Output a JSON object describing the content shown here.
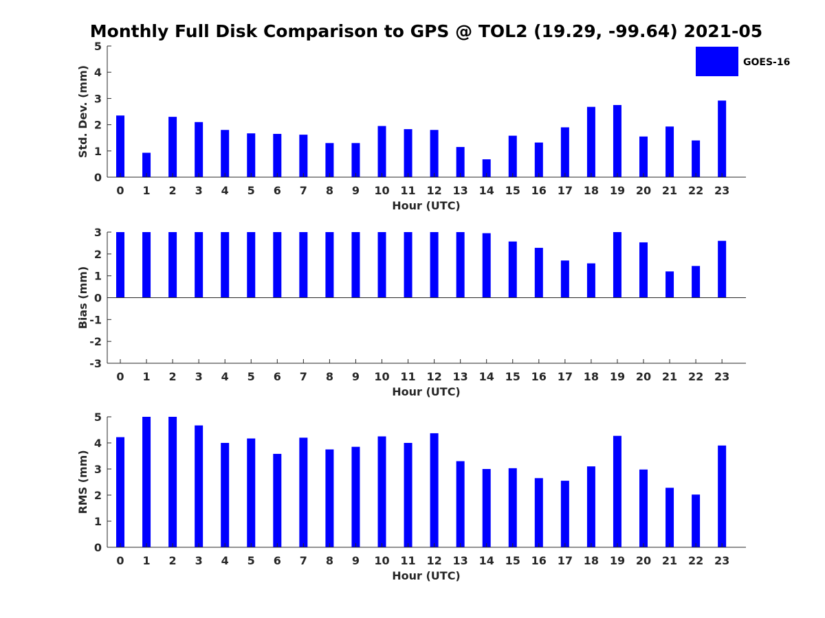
{
  "figure": {
    "title": "Monthly Full Disk Comparison to GPS @ TOL2 (19.29, -99.64) 2021-05"
  },
  "legend": {
    "label": "GOES-16",
    "color": "#0000ff"
  },
  "chart_data": [
    {
      "type": "bar",
      "id": "std",
      "ylabel": "Std. Dev. (mm)",
      "xlabel": "Hour (UTC)",
      "ylim": [
        0,
        5
      ],
      "yticks": [
        0,
        1,
        2,
        3,
        4,
        5
      ],
      "categories": [
        "0",
        "1",
        "2",
        "3",
        "4",
        "5",
        "6",
        "7",
        "8",
        "9",
        "10",
        "11",
        "12",
        "13",
        "14",
        "15",
        "16",
        "17",
        "18",
        "19",
        "20",
        "21",
        "22",
        "23"
      ],
      "series": [
        {
          "name": "GOES-16",
          "values": [
            2.35,
            0.93,
            2.3,
            2.1,
            1.8,
            1.67,
            1.65,
            1.62,
            1.3,
            1.3,
            1.95,
            1.83,
            1.8,
            1.15,
            0.68,
            1.58,
            1.32,
            1.9,
            2.68,
            2.75,
            1.55,
            1.93,
            1.4,
            2.92
          ]
        }
      ]
    },
    {
      "type": "bar",
      "id": "bias",
      "ylabel": "Bias (mm)",
      "xlabel": "Hour (UTC)",
      "ylim": [
        -3,
        3
      ],
      "yticks": [
        -3,
        -2,
        -1,
        0,
        1,
        2,
        3
      ],
      "categories": [
        "0",
        "1",
        "2",
        "3",
        "4",
        "5",
        "6",
        "7",
        "8",
        "9",
        "10",
        "11",
        "12",
        "13",
        "14",
        "15",
        "16",
        "17",
        "18",
        "19",
        "20",
        "21",
        "22",
        "23"
      ],
      "series": [
        {
          "name": "GOES-16",
          "values": [
            3,
            3,
            3,
            3,
            3,
            3,
            3,
            3,
            3,
            3,
            3,
            3,
            3,
            3,
            2.95,
            2.57,
            2.28,
            1.7,
            1.57,
            3,
            2.53,
            1.2,
            1.45,
            2.6
          ]
        }
      ]
    },
    {
      "type": "bar",
      "id": "rms",
      "ylabel": "RMS (mm)",
      "xlabel": "Hour (UTC)",
      "ylim": [
        0,
        5
      ],
      "yticks": [
        0,
        1,
        2,
        3,
        4,
        5
      ],
      "categories": [
        "0",
        "1",
        "2",
        "3",
        "4",
        "5",
        "6",
        "7",
        "8",
        "9",
        "10",
        "11",
        "12",
        "13",
        "14",
        "15",
        "16",
        "17",
        "18",
        "19",
        "20",
        "21",
        "22",
        "23"
      ],
      "series": [
        {
          "name": "GOES-16",
          "values": [
            4.22,
            5,
            5,
            4.67,
            4.0,
            4.17,
            3.58,
            4.2,
            3.75,
            3.85,
            4.25,
            4.0,
            4.37,
            3.3,
            3.0,
            3.03,
            2.65,
            2.55,
            3.1,
            4.27,
            2.98,
            2.28,
            2.02,
            3.9
          ]
        }
      ]
    }
  ]
}
